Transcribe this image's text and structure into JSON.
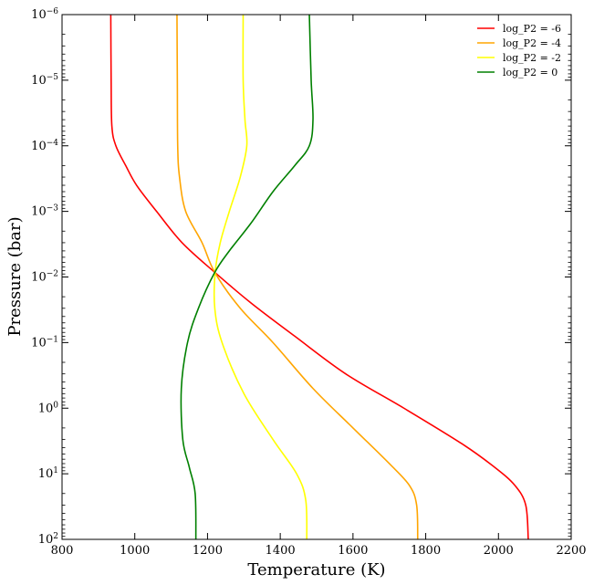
{
  "chart_data": {
    "type": "line",
    "title": "",
    "xlabel": "Temperature (K)",
    "ylabel": "Pressure (bar)",
    "xlim": [
      800,
      2200
    ],
    "ylim": [
      100,
      1e-06
    ],
    "y_scale": "log",
    "y_inverted": true,
    "grid": false,
    "legend_position": "top-right",
    "x_ticks": [
      800,
      1000,
      1200,
      1400,
      1600,
      1800,
      2000,
      2200
    ],
    "x_tick_labels": [
      "800",
      "1000",
      "1200",
      "1400",
      "1600",
      "1800",
      "2000",
      "2200"
    ],
    "y_ticks": [
      1e-06,
      1e-05,
      0.0001,
      0.001,
      0.01,
      0.1,
      1,
      10,
      100
    ],
    "y_tick_labels": [
      {
        "base": "10",
        "exp": "−6"
      },
      {
        "base": "10",
        "exp": "−5"
      },
      {
        "base": "10",
        "exp": "−4"
      },
      {
        "base": "10",
        "exp": "−3"
      },
      {
        "base": "10",
        "exp": "−2"
      },
      {
        "base": "10",
        "exp": "−1"
      },
      {
        "base": "10",
        "exp": "0"
      },
      {
        "base": "10",
        "exp": "1"
      },
      {
        "base": "10",
        "exp": "2"
      }
    ],
    "series": [
      {
        "name": "log_P2 = -6",
        "color": "#ff0000",
        "points": [
          [
            934,
            1e-06
          ],
          [
            935,
            1e-05
          ],
          [
            937,
            5e-05
          ],
          [
            948,
            0.0001
          ],
          [
            975,
            0.0002
          ],
          [
            1005,
            0.0004
          ],
          [
            1060,
            0.001
          ],
          [
            1130,
            0.003
          ],
          [
            1220,
            0.0085
          ],
          [
            1320,
            0.025
          ],
          [
            1440,
            0.08
          ],
          [
            1580,
            0.3
          ],
          [
            1740,
            1
          ],
          [
            1900,
            3.5
          ],
          [
            1990,
            8
          ],
          [
            2045,
            15
          ],
          [
            2075,
            30
          ],
          [
            2082,
            100
          ]
        ]
      },
      {
        "name": "log_P2 = -4",
        "color": "#ffa500",
        "points": [
          [
            1116,
            1e-06
          ],
          [
            1117,
            1e-05
          ],
          [
            1118,
            0.0001
          ],
          [
            1123,
            0.0003
          ],
          [
            1140,
            0.001
          ],
          [
            1185,
            0.003
          ],
          [
            1220,
            0.0085
          ],
          [
            1290,
            0.03
          ],
          [
            1380,
            0.1
          ],
          [
            1490,
            0.5
          ],
          [
            1600,
            2
          ],
          [
            1700,
            7
          ],
          [
            1755,
            15
          ],
          [
            1775,
            30
          ],
          [
            1778,
            100
          ]
        ]
      },
      {
        "name": "log_P2 = -2",
        "color": "#ffff00",
        "points": [
          [
            1298,
            1e-06
          ],
          [
            1298,
            1e-05
          ],
          [
            1303,
            4e-05
          ],
          [
            1308,
            0.0001
          ],
          [
            1290,
            0.0003
          ],
          [
            1260,
            0.001
          ],
          [
            1235,
            0.003
          ],
          [
            1221,
            0.0085
          ],
          [
            1220,
            0.03
          ],
          [
            1240,
            0.1
          ],
          [
            1300,
            0.6
          ],
          [
            1380,
            3
          ],
          [
            1445,
            10
          ],
          [
            1470,
            25
          ],
          [
            1473,
            100
          ]
        ]
      },
      {
        "name": "log_P2 = 0",
        "color": "#008000",
        "points": [
          [
            1480,
            1e-06
          ],
          [
            1485,
            1e-05
          ],
          [
            1490,
            4e-05
          ],
          [
            1480,
            0.0001
          ],
          [
            1440,
            0.0002
          ],
          [
            1380,
            0.0005
          ],
          [
            1320,
            0.0015
          ],
          [
            1260,
            0.004
          ],
          [
            1220,
            0.0085
          ],
          [
            1175,
            0.03
          ],
          [
            1145,
            0.1
          ],
          [
            1128,
            0.5
          ],
          [
            1132,
            3
          ],
          [
            1150,
            8
          ],
          [
            1166,
            20
          ],
          [
            1168,
            100
          ]
        ]
      }
    ]
  }
}
